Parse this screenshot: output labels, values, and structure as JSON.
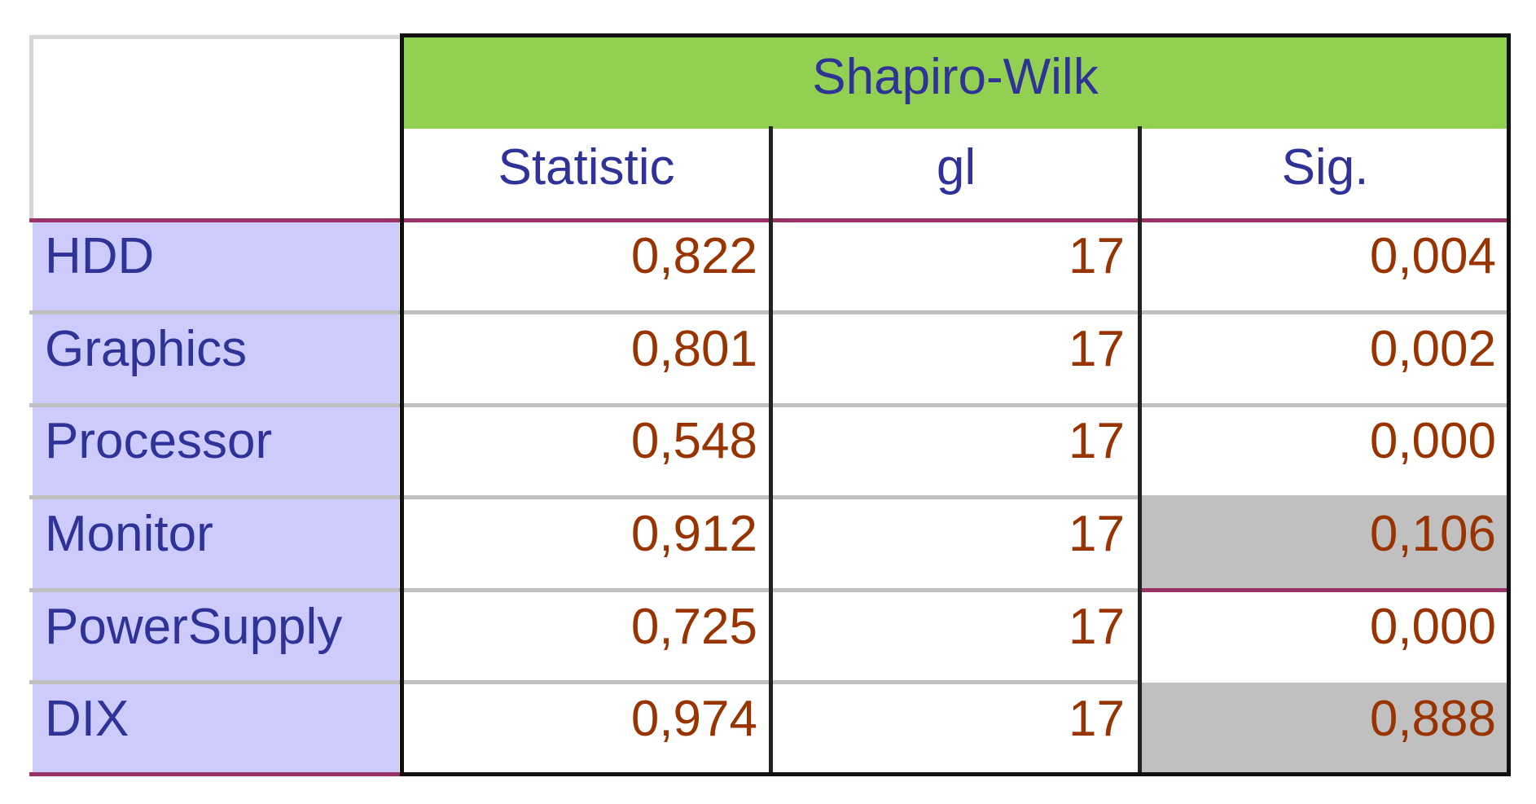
{
  "table": {
    "group_header": "Shapiro-Wilk",
    "columns": [
      "Statistic",
      "gl",
      "Sig."
    ],
    "rows": [
      {
        "label": "HDD",
        "statistic": "0,822",
        "gl": "17",
        "sig": "0,004",
        "sig_highlighted": false
      },
      {
        "label": "Graphics",
        "statistic": "0,801",
        "gl": "17",
        "sig": "0,002",
        "sig_highlighted": false
      },
      {
        "label": "Processor",
        "statistic": "0,548",
        "gl": "17",
        "sig": "0,000",
        "sig_highlighted": false
      },
      {
        "label": "Monitor",
        "statistic": "0,912",
        "gl": "17",
        "sig": "0,106",
        "sig_highlighted": true
      },
      {
        "label": "PowerSupply",
        "statistic": "0,725",
        "gl": "17",
        "sig": "0,000",
        "sig_highlighted": false
      },
      {
        "label": "DIX",
        "statistic": "0,974",
        "gl": "17",
        "sig": "0,888",
        "sig_highlighted": true
      }
    ]
  },
  "colors": {
    "header_green": "#92d051",
    "label_background": "#cccbfc",
    "label_text": "#2f3296",
    "value_text": "#993300",
    "highlight_gray": "#c0c0c0",
    "row_separator": "#c0c0c0",
    "accent_line": "#993366"
  }
}
